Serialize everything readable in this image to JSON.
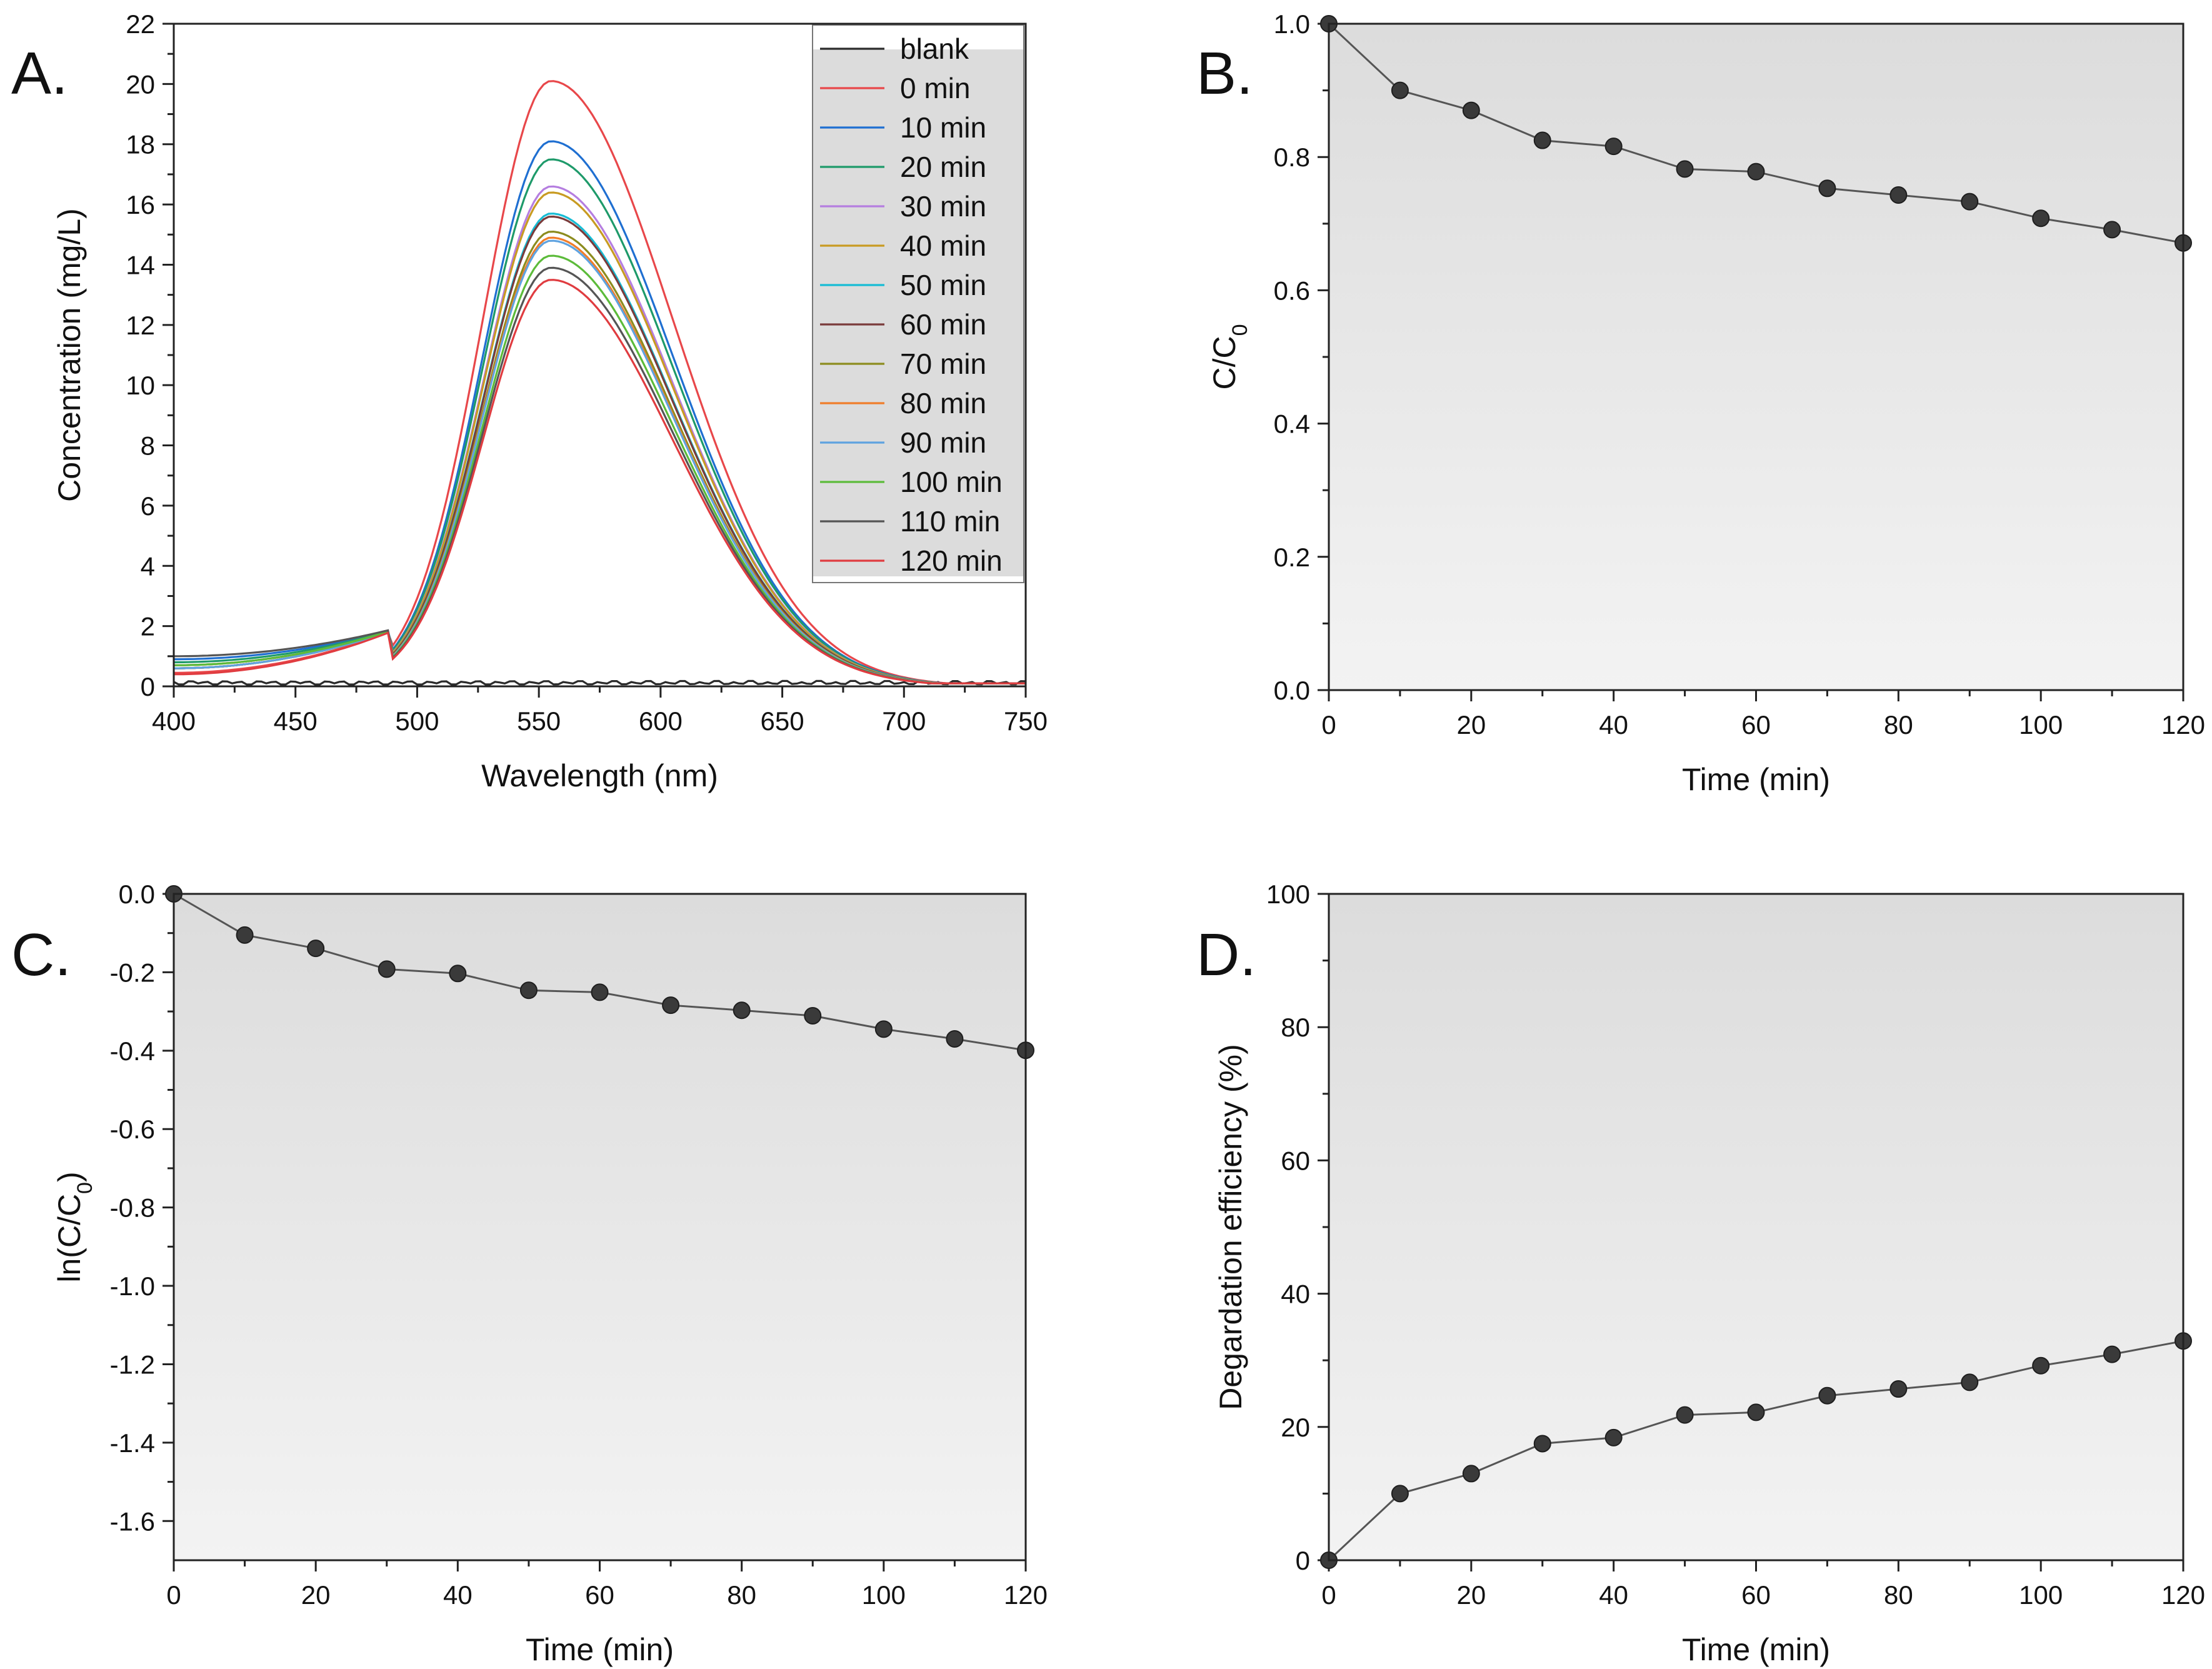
{
  "chart_data": [
    {
      "panel": "A.",
      "type": "line",
      "xlabel": "Wavelength (nm)",
      "ylabel": "Concentration (mg/L)",
      "xlim": [
        400,
        750
      ],
      "ylim": [
        0,
        22
      ],
      "xticks": [
        400,
        450,
        500,
        550,
        600,
        650,
        700,
        750
      ],
      "yticks": [
        0,
        2,
        4,
        6,
        8,
        10,
        12,
        14,
        16,
        18,
        20,
        22
      ],
      "peak_wavelength": 555,
      "legend_position": "top-right",
      "series": [
        {
          "name": "blank",
          "color": "#2b2b2b",
          "peak": 0.15,
          "left": 0.0,
          "right": 0.0
        },
        {
          "name": "0 min",
          "color": "#e8474a",
          "peak": 20.1,
          "left": 0.45,
          "right": 0.1
        },
        {
          "name": "10 min",
          "color": "#1f6fd1",
          "peak": 18.1,
          "left": 0.9,
          "right": 0.1
        },
        {
          "name": "20 min",
          "color": "#1e9a6a",
          "peak": 17.5,
          "left": 0.8,
          "right": 0.1
        },
        {
          "name": "30 min",
          "color": "#b57ee0",
          "peak": 16.6,
          "left": 0.7,
          "right": 0.1
        },
        {
          "name": "40 min",
          "color": "#c89b22",
          "peak": 16.4,
          "left": 0.7,
          "right": 0.1
        },
        {
          "name": "50 min",
          "color": "#17bcd4",
          "peak": 15.7,
          "left": 0.6,
          "right": 0.1
        },
        {
          "name": "60 min",
          "color": "#7a3b3b",
          "peak": 15.6,
          "left": 0.6,
          "right": 0.1
        },
        {
          "name": "70 min",
          "color": "#8c8c1e",
          "peak": 15.1,
          "left": 0.6,
          "right": 0.1
        },
        {
          "name": "80 min",
          "color": "#f07d2a",
          "peak": 14.9,
          "left": 0.6,
          "right": 0.1
        },
        {
          "name": "90 min",
          "color": "#5fa3e0",
          "peak": 14.8,
          "left": 0.6,
          "right": 0.1
        },
        {
          "name": "100 min",
          "color": "#5cbb3a",
          "peak": 14.3,
          "left": 0.7,
          "right": 0.1
        },
        {
          "name": "110 min",
          "color": "#555555",
          "peak": 13.9,
          "left": 1.0,
          "right": 0.1
        },
        {
          "name": "120 min",
          "color": "#e03c40",
          "peak": 13.5,
          "left": 0.4,
          "right": 0.1
        }
      ]
    },
    {
      "panel": "B.",
      "type": "line",
      "xlabel": "Time (min)",
      "ylabel": "C/C",
      "ylabel_sub": "0",
      "xlim": [
        0,
        120
      ],
      "ylim": [
        0,
        1
      ],
      "xticks": [
        0,
        20,
        40,
        60,
        80,
        100,
        120
      ],
      "yticks": [
        0.0,
        0.2,
        0.4,
        0.6,
        0.8,
        1.0
      ],
      "ytick_labels": [
        "0.0",
        "0.2",
        "0.4",
        "0.6",
        "0.8",
        "1.0"
      ],
      "x": [
        0,
        10,
        20,
        30,
        40,
        50,
        60,
        70,
        80,
        90,
        100,
        110,
        120
      ],
      "y": [
        1.0,
        0.9,
        0.87,
        0.825,
        0.816,
        0.782,
        0.778,
        0.753,
        0.743,
        0.733,
        0.708,
        0.691,
        0.671
      ]
    },
    {
      "panel": "C.",
      "type": "line",
      "xlabel": "Time (min)",
      "ylabel": "ln(C/C",
      "ylabel_sub": "0",
      "ylabel_end": ")",
      "xlim": [
        0,
        120
      ],
      "ylim": [
        -1.7,
        0
      ],
      "xticks": [
        0,
        20,
        40,
        60,
        80,
        100,
        120
      ],
      "yticks": [
        0.0,
        -0.2,
        -0.4,
        -0.6,
        -0.8,
        -1.0,
        -1.2,
        -1.4,
        -1.6
      ],
      "ytick_labels": [
        "0.0",
        "-0.2",
        "-0.4",
        "-0.6",
        "-0.8",
        "-1.0",
        "-1.2",
        "-1.4",
        "-1.6"
      ],
      "x": [
        0,
        10,
        20,
        30,
        40,
        50,
        60,
        70,
        80,
        90,
        100,
        110,
        120
      ],
      "y": [
        0.0,
        -0.105,
        -0.139,
        -0.192,
        -0.203,
        -0.246,
        -0.251,
        -0.284,
        -0.297,
        -0.311,
        -0.345,
        -0.37,
        -0.399
      ]
    },
    {
      "panel": "D.",
      "type": "line",
      "xlabel": "Time (min)",
      "ylabel": "Degardation efficiency (%)",
      "xlim": [
        0,
        120
      ],
      "ylim": [
        0,
        100
      ],
      "xticks": [
        0,
        20,
        40,
        60,
        80,
        100,
        120
      ],
      "yticks": [
        0,
        20,
        40,
        60,
        80,
        100
      ],
      "ytick_labels": [
        "0",
        "20",
        "40",
        "60",
        "80",
        "100"
      ],
      "x": [
        0,
        10,
        20,
        30,
        40,
        50,
        60,
        70,
        80,
        90,
        100,
        110,
        120
      ],
      "y": [
        0,
        10,
        13,
        17.5,
        18.4,
        21.8,
        22.2,
        24.7,
        25.7,
        26.7,
        29.2,
        30.9,
        32.9
      ]
    }
  ]
}
